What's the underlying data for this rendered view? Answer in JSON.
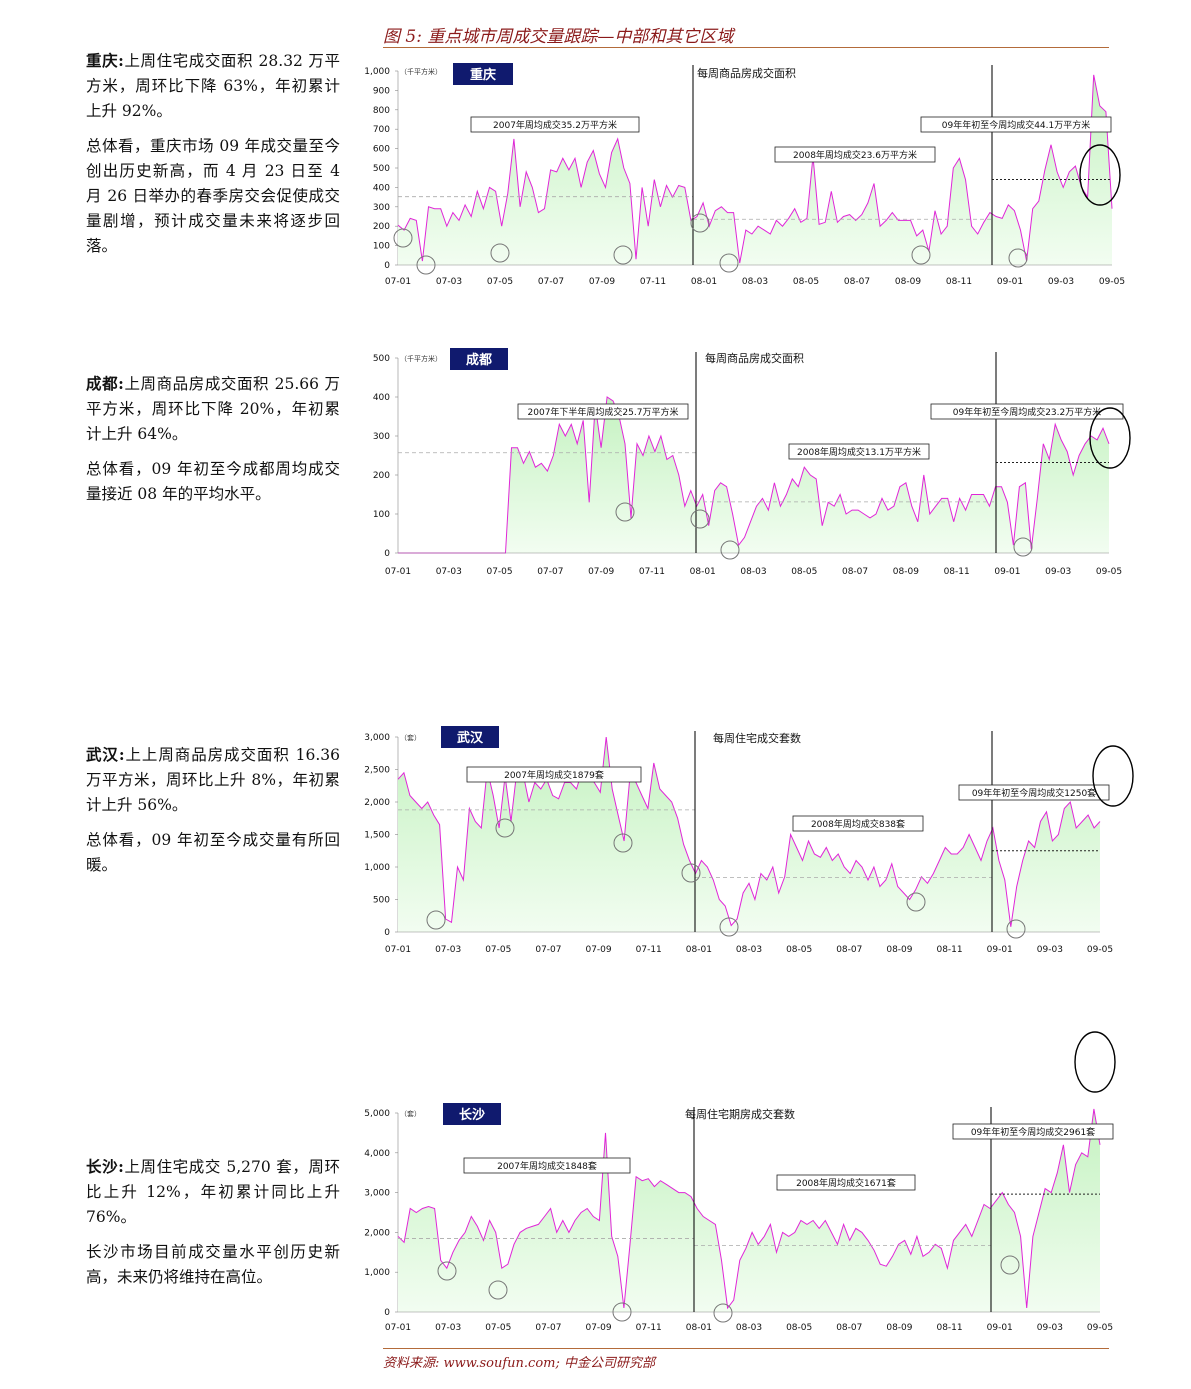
{
  "figure_title": "图 5: 重点城市周成交量跟踪—中部和其它区域",
  "source": "资料来源: www.soufun.com; 中金公司研究部",
  "colors": {
    "line": "#e026d8",
    "fill_top": "#c4f2c0",
    "fill_bottom": "#f2fdf1",
    "city_box": "#101a6e",
    "title": "#8b1a1a",
    "rule": "#b36b3a"
  },
  "text_blocks": [
    {
      "city": "重庆:",
      "p1": "上周住宅成交面积 28.32 万平方米，周环比下降 63%，年初累计上升 92%。",
      "p2": "总体看，重庆市场 09 年成交量至今创出历史新高，而 4 月 23 日至 4 月 26 日举办的春季房交会促使成交量剧增，预计成交量未来将逐步回落。"
    },
    {
      "city": "成都:",
      "p1": "上周商品房成交面积 25.66 万平方米，周环比下降 20%，年初累计上升 64%。",
      "p2": "总体看，09 年初至今成都周均成交量接近 08 年的平均水平。"
    },
    {
      "city": "武汉:",
      "p1": "上上周商品房成交面积 16.36 万平方米，周环比上升 8%，年初累计上升 56%。",
      "p2": "总体看，09 年初至今成交量有所回暖。"
    },
    {
      "city": "长沙:",
      "p1": "上周住宅成交 5,270 套，周环比上升 12%，年初累计同比上升 76%。",
      "p2": "长沙市场目前成交量水平创历史新高，未来仍将维持在高位。"
    }
  ],
  "chart_data": [
    {
      "type": "area",
      "city": "重庆",
      "unit": "（千平方米）",
      "metric": "每周商品房成交面积",
      "ylim": [
        0,
        1000
      ],
      "yticks": [
        "0",
        "100",
        "200",
        "300",
        "400",
        "500",
        "600",
        "700",
        "800",
        "900",
        "1,000"
      ],
      "xticks": [
        "07-01",
        "07-03",
        "07-05",
        "07-07",
        "07-09",
        "07-11",
        "08-01",
        "08-03",
        "08-05",
        "08-07",
        "08-09",
        "08-11",
        "09-01",
        "09-03",
        "09-05"
      ],
      "annotations": [
        {
          "text": "2007年周均成交35.2万平方米",
          "avg": 352
        },
        {
          "text": "2008年周均成交23.6万平方米",
          "avg": 236
        },
        {
          "text": "09年年初至今周均成交44.1万平方米",
          "avg": 441
        }
      ],
      "values": [
        205,
        180,
        240,
        230,
        20,
        300,
        290,
        290,
        200,
        270,
        230,
        310,
        250,
        380,
        290,
        400,
        380,
        200,
        370,
        650,
        300,
        480,
        400,
        270,
        290,
        490,
        480,
        550,
        490,
        550,
        400,
        530,
        590,
        470,
        400,
        580,
        650,
        500,
        420,
        30,
        400,
        200,
        440,
        300,
        410,
        350,
        410,
        400,
        230,
        250,
        320,
        200,
        280,
        300,
        270,
        270,
        10,
        180,
        160,
        200,
        180,
        160,
        230,
        200,
        240,
        290,
        220,
        240,
        560,
        210,
        220,
        380,
        220,
        250,
        260,
        230,
        260,
        320,
        420,
        200,
        230,
        270,
        230,
        230,
        230,
        150,
        180,
        70,
        280,
        160,
        200,
        500,
        550,
        440,
        200,
        160,
        220,
        270,
        250,
        240,
        310,
        280,
        180,
        20,
        290,
        330,
        490,
        620,
        480,
        400,
        480,
        510,
        400,
        350,
        980,
        820,
        790,
        290
      ]
    },
    {
      "type": "area",
      "city": "成都",
      "unit": "（千平方米）",
      "metric": "每周商品房成交面积",
      "ylim": [
        0,
        500
      ],
      "yticks": [
        "0",
        "100",
        "200",
        "300",
        "400",
        "500"
      ],
      "xticks": [
        "07-01",
        "07-03",
        "07-05",
        "07-07",
        "07-09",
        "07-11",
        "08-01",
        "08-03",
        "08-05",
        "08-07",
        "08-09",
        "08-11",
        "09-01",
        "09-03",
        "09-05"
      ],
      "annotations": [
        {
          "text": "2007年下半年周均成交25.7万平方米",
          "avg": 257
        },
        {
          "text": "2008年周均成交13.1万平方米",
          "avg": 131
        },
        {
          "text": "09年年初至今周均成交23.2万平方米",
          "avg": 232
        }
      ],
      "values": [
        0,
        0,
        0,
        0,
        0,
        0,
        0,
        0,
        0,
        0,
        0,
        0,
        0,
        0,
        0,
        0,
        0,
        0,
        0,
        270,
        270,
        230,
        260,
        220,
        230,
        210,
        250,
        330,
        300,
        330,
        280,
        340,
        130,
        380,
        270,
        400,
        390,
        350,
        280,
        90,
        280,
        250,
        300,
        260,
        300,
        240,
        250,
        200,
        120,
        160,
        120,
        150,
        70,
        160,
        180,
        170,
        100,
        20,
        40,
        80,
        120,
        140,
        110,
        180,
        120,
        150,
        190,
        170,
        220,
        200,
        190,
        70,
        130,
        120,
        150,
        100,
        110,
        110,
        100,
        90,
        100,
        140,
        110,
        120,
        170,
        180,
        120,
        80,
        200,
        100,
        120,
        140,
        140,
        80,
        140,
        110,
        150,
        150,
        150,
        120,
        170,
        170,
        130,
        20,
        170,
        180,
        10,
        140,
        280,
        240,
        330,
        290,
        260,
        200,
        250,
        280,
        300,
        290,
        320,
        280
      ]
    },
    {
      "type": "area",
      "city": "武汉",
      "unit": "（套）",
      "metric": "每周住宅成交套数",
      "ylim": [
        0,
        3000
      ],
      "yticks": [
        "0",
        "500",
        "1,000",
        "1,500",
        "2,000",
        "2,500",
        "3,000"
      ],
      "xticks": [
        "07-01",
        "07-03",
        "07-05",
        "07-07",
        "07-09",
        "07-11",
        "08-01",
        "08-03",
        "08-05",
        "08-07",
        "08-09",
        "08-11",
        "09-01",
        "09-03",
        "09-05"
      ],
      "annotations": [
        {
          "text": "2007年周均成交1879套",
          "avg": 1879
        },
        {
          "text": "2008年周均成交838套",
          "avg": 838
        },
        {
          "text": "09年年初至今周均成交1250套",
          "avg": 1250
        }
      ],
      "values": [
        2350,
        2450,
        2100,
        2000,
        1900,
        2000,
        1800,
        1650,
        200,
        150,
        1000,
        800,
        1900,
        1700,
        1600,
        2500,
        2100,
        1600,
        2400,
        1700,
        2500,
        2450,
        2000,
        2300,
        2200,
        2350,
        2100,
        2050,
        2300,
        2300,
        2200,
        2500,
        2400,
        2300,
        2150,
        3000,
        2200,
        1800,
        1400,
        2400,
        2300,
        2100,
        1900,
        2600,
        2200,
        2100,
        2000,
        1750,
        1350,
        1100,
        900,
        1100,
        1000,
        800,
        500,
        400,
        100,
        200,
        600,
        750,
        500,
        900,
        800,
        1000,
        600,
        850,
        1500,
        1300,
        1100,
        1400,
        1200,
        1150,
        1300,
        1100,
        1200,
        1000,
        900,
        1100,
        1000,
        800,
        1000,
        700,
        800,
        1050,
        700,
        600,
        500,
        650,
        850,
        750,
        900,
        1100,
        1300,
        1200,
        1200,
        1300,
        1500,
        1300,
        1100,
        1400,
        1600,
        1100,
        800,
        80,
        700,
        1100,
        1400,
        1300,
        1700,
        1850,
        1400,
        1500,
        1900,
        2000,
        1600,
        1700,
        1800,
        1600,
        1700
      ]
    },
    {
      "type": "area",
      "city": "长沙",
      "unit": "（套）",
      "metric": "每周住宅期房成交套数",
      "ylim": [
        0,
        5000
      ],
      "yticks": [
        "0",
        "1,000",
        "2,000",
        "3,000",
        "4,000",
        "5,000"
      ],
      "xticks": [
        "07-01",
        "07-03",
        "07-05",
        "07-07",
        "07-09",
        "07-11",
        "08-01",
        "08-03",
        "08-05",
        "08-07",
        "08-09",
        "08-11",
        "09-01",
        "09-03",
        "09-05"
      ],
      "annotations": [
        {
          "text": "2007年周均成交1848套",
          "avg": 1848
        },
        {
          "text": "2008年周均成交1671套",
          "avg": 1671
        },
        {
          "text": "09年年初至今周均成交2961套",
          "avg": 2961
        }
      ],
      "values": [
        1900,
        1750,
        2600,
        2500,
        2600,
        2650,
        2600,
        1300,
        1100,
        1500,
        1800,
        2000,
        2400,
        2150,
        1800,
        2300,
        2000,
        1100,
        1200,
        1700,
        2000,
        2100,
        2150,
        2200,
        2400,
        2600,
        2000,
        2300,
        2000,
        2300,
        2500,
        2600,
        2400,
        2300,
        4500,
        1900,
        1400,
        100,
        1700,
        3400,
        3300,
        3350,
        3150,
        3300,
        3200,
        3100,
        3000,
        3000,
        2900,
        2600,
        2400,
        2300,
        2200,
        1300,
        100,
        300,
        1300,
        1600,
        2000,
        1700,
        1900,
        2200,
        1500,
        2000,
        1900,
        2000,
        2300,
        2200,
        2300,
        2100,
        2300,
        2000,
        1700,
        2200,
        1800,
        2100,
        2000,
        1800,
        1550,
        1200,
        1150,
        1400,
        1700,
        1800,
        1450,
        1900,
        1400,
        1500,
        1700,
        1600,
        1100,
        1800,
        2000,
        2200,
        1900,
        2300,
        2700,
        2600,
        2800,
        3000,
        2700,
        2500,
        1900,
        100,
        1900,
        2500,
        3100,
        3000,
        3500,
        4200,
        3000,
        3700,
        4000,
        3900,
        5100,
        4200
      ]
    }
  ]
}
